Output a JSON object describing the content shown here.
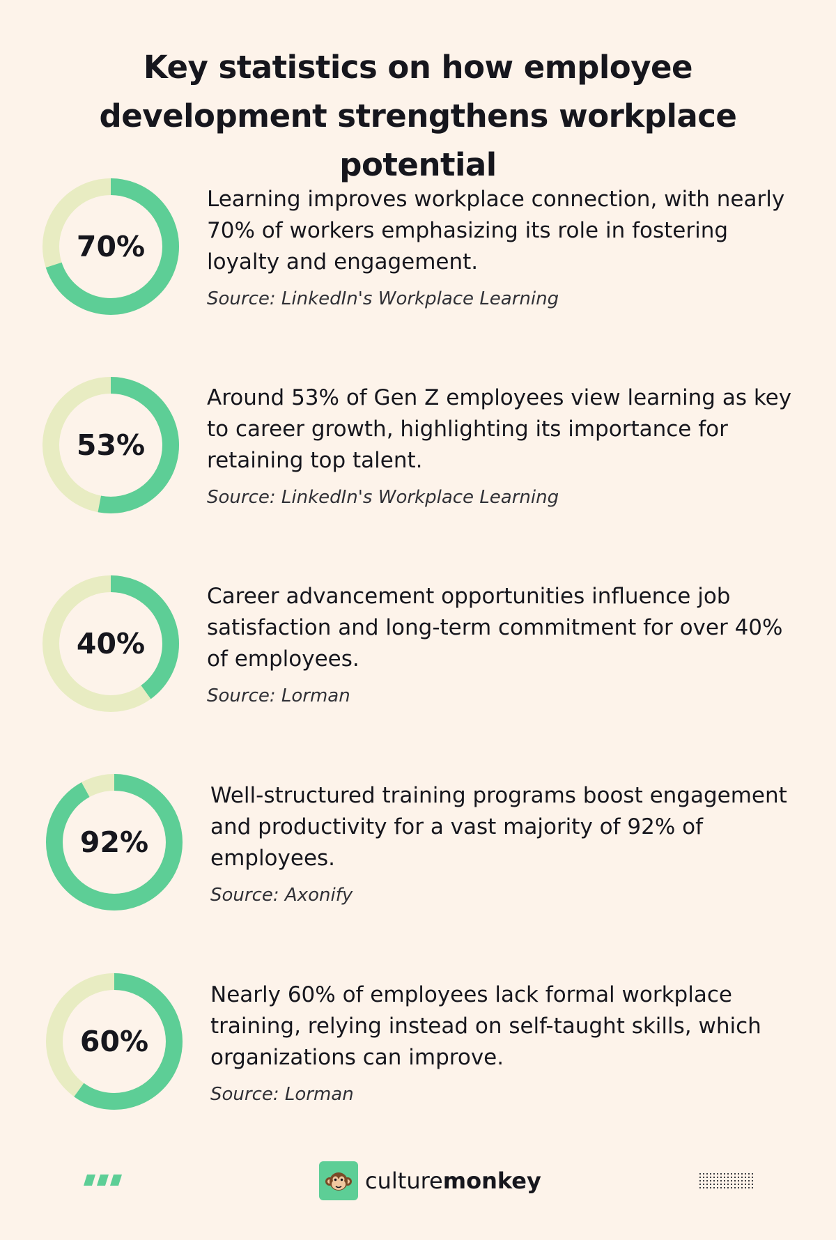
{
  "title": "Key statistics on how employee development strengthens workplace potential",
  "colors": {
    "background": "#fdf3ea",
    "ring_track": "#e8ecc2",
    "ring_fill": "#5dce96",
    "text": "#16161d"
  },
  "stats": [
    {
      "percent": 70,
      "label": "70%",
      "text": "Learning improves workplace connection, with nearly 70% of workers emphasizing its role in fostering loyalty and engagement.",
      "source": "Source: LinkedIn's Workplace Learning"
    },
    {
      "percent": 53,
      "label": "53%",
      "text": "Around 53% of Gen Z employees view learning as key to career growth, highlighting its importance for retaining top talent.",
      "source": "Source: LinkedIn's Workplace Learning"
    },
    {
      "percent": 40,
      "label": "40%",
      "text": "Career advancement opportunities influence job satisfaction and long-term commitment for over 40% of employees.",
      "source": "Source: Lorman"
    },
    {
      "percent": 92,
      "label": "92%",
      "text": "Well-structured training programs boost engagement and productivity for a vast majority of 92% of employees.",
      "source": "Source: Axonify"
    },
    {
      "percent": 60,
      "label": "60%",
      "text": "Nearly 60% of employees lack formal workplace training, relying instead on self-taught skills, which organizations can improve.",
      "source": "Source: Lorman"
    }
  ],
  "footer": {
    "brand_light": "culture",
    "brand_bold": "monkey",
    "icons": [
      "chevrons-icon",
      "monkey-logo-icon",
      "dot-grid-icon"
    ]
  }
}
